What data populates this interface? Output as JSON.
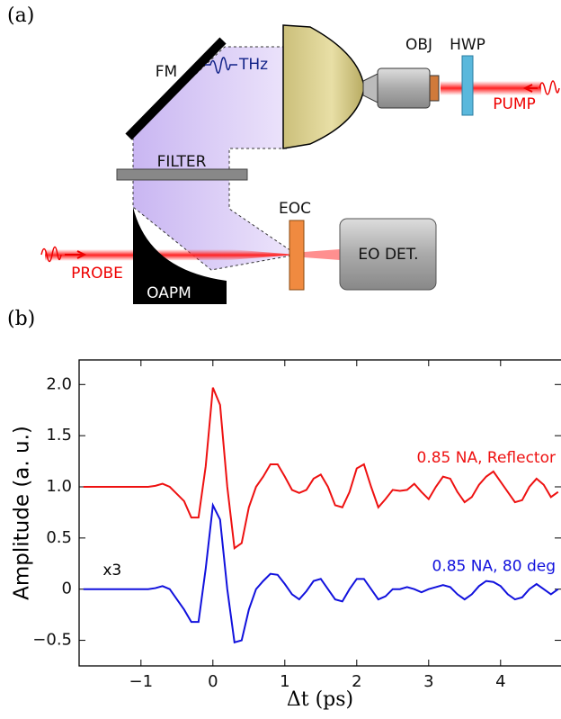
{
  "panel_labels": [
    "(a)",
    "(b)"
  ],
  "diagram": {
    "mirror": "FM",
    "thz": "THz",
    "objective": "OBJ",
    "waveplate": "HWP",
    "pump": "PUMP",
    "filter": "FILTER",
    "crystal": "EOC",
    "detector": "EO DET.",
    "probe": "PROBE",
    "parabolic_mirror": "OAPM"
  },
  "chart_data": {
    "type": "line",
    "xlabel": "Δt (ps)",
    "ylabel": "Amplitude (a. u.)",
    "annotation": "x3",
    "x": [
      -1.8,
      -1.2,
      -0.9,
      -0.8,
      -0.7,
      -0.6,
      -0.5,
      -0.4,
      -0.3,
      -0.2,
      -0.1,
      0,
      0.1,
      0.2,
      0.3,
      0.4,
      0.5,
      0.6,
      0.7,
      0.8,
      0.9,
      1.0,
      1.1,
      1.2,
      1.3,
      1.4,
      1.5,
      1.6,
      1.7,
      1.8,
      1.9,
      2.0,
      2.1,
      2.2,
      2.3,
      2.4,
      2.5,
      2.6,
      2.7,
      2.8,
      2.9,
      3.0,
      3.1,
      3.2,
      3.3,
      3.4,
      3.5,
      3.6,
      3.7,
      3.8,
      3.9,
      4.0,
      4.1,
      4.2,
      4.3,
      4.4,
      4.5,
      4.6,
      4.7,
      4.8
    ],
    "series": [
      {
        "name": "0.85 NA, Reflector",
        "color": "#ee1111",
        "values": [
          1.0,
          1.0,
          1.0,
          1.01,
          1.03,
          1.0,
          0.93,
          0.86,
          0.7,
          0.7,
          1.2,
          1.97,
          1.8,
          1.0,
          0.4,
          0.45,
          0.8,
          1.0,
          1.1,
          1.22,
          1.22,
          1.1,
          0.97,
          0.94,
          0.97,
          1.08,
          1.12,
          1.0,
          0.82,
          0.8,
          0.95,
          1.18,
          1.22,
          1.0,
          0.8,
          0.88,
          0.97,
          0.96,
          0.97,
          1.03,
          0.95,
          0.88,
          1.0,
          1.1,
          1.08,
          0.95,
          0.85,
          0.9,
          1.02,
          1.1,
          1.15,
          1.05,
          0.95,
          0.85,
          0.87,
          1.0,
          1.08,
          1.02,
          0.9,
          0.95
        ]
      },
      {
        "name": "0.85 NA, 80 deg",
        "color": "#1111dd",
        "values": [
          0,
          0,
          0,
          0.01,
          0.03,
          0,
          -0.1,
          -0.2,
          -0.32,
          -0.32,
          0.2,
          0.82,
          0.68,
          0,
          -0.52,
          -0.5,
          -0.2,
          0,
          0.08,
          0.15,
          0.14,
          0.05,
          -0.05,
          -0.1,
          -0.02,
          0.08,
          0.1,
          0,
          -0.1,
          -0.12,
          0,
          0.1,
          0.1,
          0,
          -0.1,
          -0.07,
          0,
          0,
          0.02,
          0,
          -0.03,
          0,
          0.02,
          0.04,
          0.02,
          -0.05,
          -0.1,
          -0.05,
          0.03,
          0.08,
          0.07,
          0.03,
          -0.05,
          -0.1,
          -0.08,
          0,
          0.05,
          0,
          -0.05,
          0
        ]
      }
    ],
    "xlim": [
      -1.86,
      4.84
    ],
    "ylim": [
      -0.75,
      2.24
    ],
    "xticks": [
      {
        "value": -1,
        "label": "−1"
      },
      0,
      1,
      2,
      3,
      4
    ],
    "yticks": [
      {
        "value": -0.5,
        "label": "−0.5"
      },
      0,
      {
        "value": 0.5,
        "label": "0.5"
      },
      {
        "value": 1,
        "label": "1.0"
      },
      {
        "value": 1.5,
        "label": "1.5"
      },
      {
        "value": 2,
        "label": "2.0"
      }
    ]
  }
}
